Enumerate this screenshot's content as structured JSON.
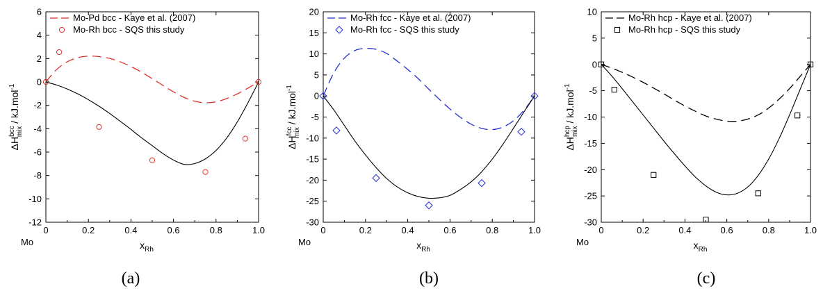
{
  "figure": {
    "captions": [
      "(a)",
      "(b)",
      "(c)"
    ]
  },
  "chart_data": [
    {
      "type": "line",
      "panel": "(a)",
      "ylabel": "ΔH^bcc_mix / kJ.mol^-1",
      "ylabel_parts": {
        "delta": "ΔH",
        "sup": "bcc",
        "sub": "mix",
        "unit": " / kJ.mol",
        "unit_exp": "-1"
      },
      "xlabel_parts": {
        "main": "x",
        "sub": "Rh"
      },
      "x_origin_label": "Mo",
      "xlim": [
        0,
        1
      ],
      "ylim": [
        -12,
        6
      ],
      "x_ticks": [
        "0",
        "0.2",
        "0.4",
        "0.6",
        "0.8",
        "1.0"
      ],
      "y_ticks": [
        "-12",
        "-10",
        "-8",
        "-6",
        "-4",
        "-2",
        "0",
        "2",
        "4",
        "6"
      ],
      "grid": false,
      "legend_position": "top-left",
      "series": [
        {
          "name": "Mo-Pd bcc - Kaye et al. (2007)",
          "style": "dashed",
          "color": "#e0302a",
          "x": [
            0,
            0.05,
            0.1,
            0.15,
            0.2,
            0.25,
            0.3,
            0.35,
            0.4,
            0.45,
            0.5,
            0.55,
            0.6,
            0.65,
            0.7,
            0.75,
            0.8,
            0.85,
            0.9,
            0.95,
            1.0
          ],
          "y": [
            0,
            1.05,
            1.72,
            2.08,
            2.21,
            2.17,
            2.01,
            1.72,
            1.32,
            0.83,
            0.28,
            -0.29,
            -0.85,
            -1.32,
            -1.65,
            -1.78,
            -1.7,
            -1.42,
            -1.02,
            -0.53,
            0
          ]
        },
        {
          "name": "",
          "style": "solid",
          "color": "#000000",
          "x": [
            0,
            0.05,
            0.1,
            0.15,
            0.2,
            0.25,
            0.3,
            0.35,
            0.4,
            0.45,
            0.5,
            0.55,
            0.6,
            0.65,
            0.7,
            0.75,
            0.8,
            0.85,
            0.9,
            0.95,
            1.0
          ],
          "y": [
            0,
            -0.26,
            -0.6,
            -1.02,
            -1.52,
            -2.08,
            -2.7,
            -3.37,
            -4.06,
            -4.78,
            -5.45,
            -6.12,
            -6.68,
            -7.05,
            -6.98,
            -6.58,
            -5.86,
            -4.8,
            -3.42,
            -1.78,
            0
          ]
        },
        {
          "name": "Mo-Rh bcc - SQS this study",
          "style": "markers",
          "marker": "circle",
          "color": "#e0302a",
          "x": [
            0,
            0.0625,
            0.25,
            0.5,
            0.75,
            0.9375,
            1.0
          ],
          "y": [
            0,
            2.55,
            -3.85,
            -6.7,
            -7.7,
            -4.85,
            0
          ]
        }
      ]
    },
    {
      "type": "line",
      "panel": "(b)",
      "ylabel": "ΔH^fcc_mix / kJ.mol^-1",
      "ylabel_parts": {
        "delta": "ΔH",
        "sup": "fcc",
        "sub": "mix",
        "unit": " / kJ.mol",
        "unit_exp": "-1"
      },
      "xlabel_parts": {
        "main": "x",
        "sub": "Rh"
      },
      "x_origin_label": "Mo",
      "xlim": [
        0,
        1
      ],
      "ylim": [
        -30,
        20
      ],
      "x_ticks": [
        "0",
        "0.2",
        "0.4",
        "0.6",
        "0.8",
        "1.0"
      ],
      "y_ticks": [
        "-30",
        "-25",
        "-20",
        "-15",
        "-10",
        "-5",
        "0",
        "5",
        "10",
        "15",
        "20"
      ],
      "grid": false,
      "legend_position": "top-left",
      "series": [
        {
          "name": "Mo-Rh fcc - Kaye et al. (2007)",
          "style": "dashed",
          "color": "#2230d0",
          "x": [
            0,
            0.05,
            0.1,
            0.15,
            0.2,
            0.25,
            0.3,
            0.35,
            0.4,
            0.45,
            0.5,
            0.55,
            0.6,
            0.65,
            0.7,
            0.75,
            0.8,
            0.85,
            0.9,
            0.95,
            1.0
          ],
          "y": [
            0,
            5.5,
            9.0,
            10.8,
            11.3,
            11.1,
            10.1,
            8.3,
            6.3,
            4.1,
            1.6,
            -0.8,
            -3.1,
            -5.1,
            -6.7,
            -7.7,
            -8.0,
            -7.4,
            -5.9,
            -3.4,
            0
          ]
        },
        {
          "name": "",
          "style": "solid",
          "color": "#000000",
          "x": [
            0,
            0.05,
            0.1,
            0.15,
            0.2,
            0.25,
            0.3,
            0.35,
            0.4,
            0.45,
            0.5,
            0.55,
            0.6,
            0.65,
            0.7,
            0.75,
            0.8,
            0.85,
            0.9,
            0.95,
            1.0
          ],
          "y": [
            0,
            -3.3,
            -7.0,
            -10.7,
            -14.0,
            -17.0,
            -19.6,
            -21.6,
            -23.0,
            -23.9,
            -24.3,
            -24.2,
            -23.6,
            -22.2,
            -20.4,
            -18.0,
            -15.0,
            -11.5,
            -7.7,
            -3.8,
            0
          ]
        },
        {
          "name": "Mo-Rh fcc - SQS this study",
          "style": "markers",
          "marker": "diamond",
          "color": "#2230d0",
          "x": [
            0,
            0.0625,
            0.25,
            0.5,
            0.75,
            0.9375,
            1.0
          ],
          "y": [
            0,
            -8.2,
            -19.5,
            -26.0,
            -20.7,
            -8.5,
            0
          ]
        }
      ]
    },
    {
      "type": "line",
      "panel": "(c)",
      "ylabel": "ΔH^hcp_mix / kJ.mol^-1",
      "ylabel_parts": {
        "delta": "ΔH",
        "sup": "hcp",
        "sub": "mix",
        "unit": " / kJ.mol",
        "unit_exp": "-1"
      },
      "xlabel_parts": {
        "main": "x",
        "sub": "Rh"
      },
      "x_origin_label": "Mo",
      "xlim": [
        0,
        1
      ],
      "ylim": [
        -30,
        10
      ],
      "x_ticks": [
        "0",
        "0.2",
        "0.4",
        "0.6",
        "0.8",
        "1.0"
      ],
      "y_ticks": [
        "-30",
        "-25",
        "-20",
        "-15",
        "-10",
        "-5",
        "0",
        "5",
        "10"
      ],
      "grid": false,
      "legend_position": "top-left",
      "series": [
        {
          "name": "Mo-Rh hcp - Kaye et al. (2007)",
          "style": "dashed",
          "color": "#000000",
          "x": [
            0,
            0.05,
            0.1,
            0.15,
            0.2,
            0.25,
            0.3,
            0.35,
            0.4,
            0.45,
            0.5,
            0.55,
            0.6,
            0.65,
            0.7,
            0.75,
            0.8,
            0.85,
            0.9,
            0.95,
            1.0
          ],
          "y": [
            0,
            -0.7,
            -1.5,
            -2.4,
            -3.4,
            -4.5,
            -5.6,
            -6.8,
            -7.9,
            -8.9,
            -9.8,
            -10.4,
            -10.8,
            -10.8,
            -10.4,
            -9.6,
            -8.3,
            -6.6,
            -4.6,
            -2.3,
            0
          ]
        },
        {
          "name": "",
          "style": "solid",
          "color": "#000000",
          "x": [
            0,
            0.05,
            0.1,
            0.15,
            0.2,
            0.25,
            0.3,
            0.35,
            0.4,
            0.45,
            0.5,
            0.55,
            0.6,
            0.65,
            0.7,
            0.75,
            0.8,
            0.85,
            0.9,
            0.95,
            1.0
          ],
          "y": [
            0,
            -2.2,
            -4.6,
            -7.1,
            -9.6,
            -12.1,
            -14.6,
            -17.0,
            -19.3,
            -21.4,
            -23.1,
            -24.3,
            -24.8,
            -24.5,
            -23.3,
            -21.1,
            -18.0,
            -14.1,
            -9.6,
            -4.8,
            0
          ]
        },
        {
          "name": "Mo-Rh hcp - SQS this study",
          "style": "markers",
          "marker": "square",
          "color": "#000000",
          "x": [
            0,
            0.0625,
            0.25,
            0.5,
            0.75,
            0.9375,
            1.0
          ],
          "y": [
            0,
            -4.8,
            -21.0,
            -29.5,
            -24.5,
            -9.7,
            0
          ]
        }
      ]
    }
  ]
}
